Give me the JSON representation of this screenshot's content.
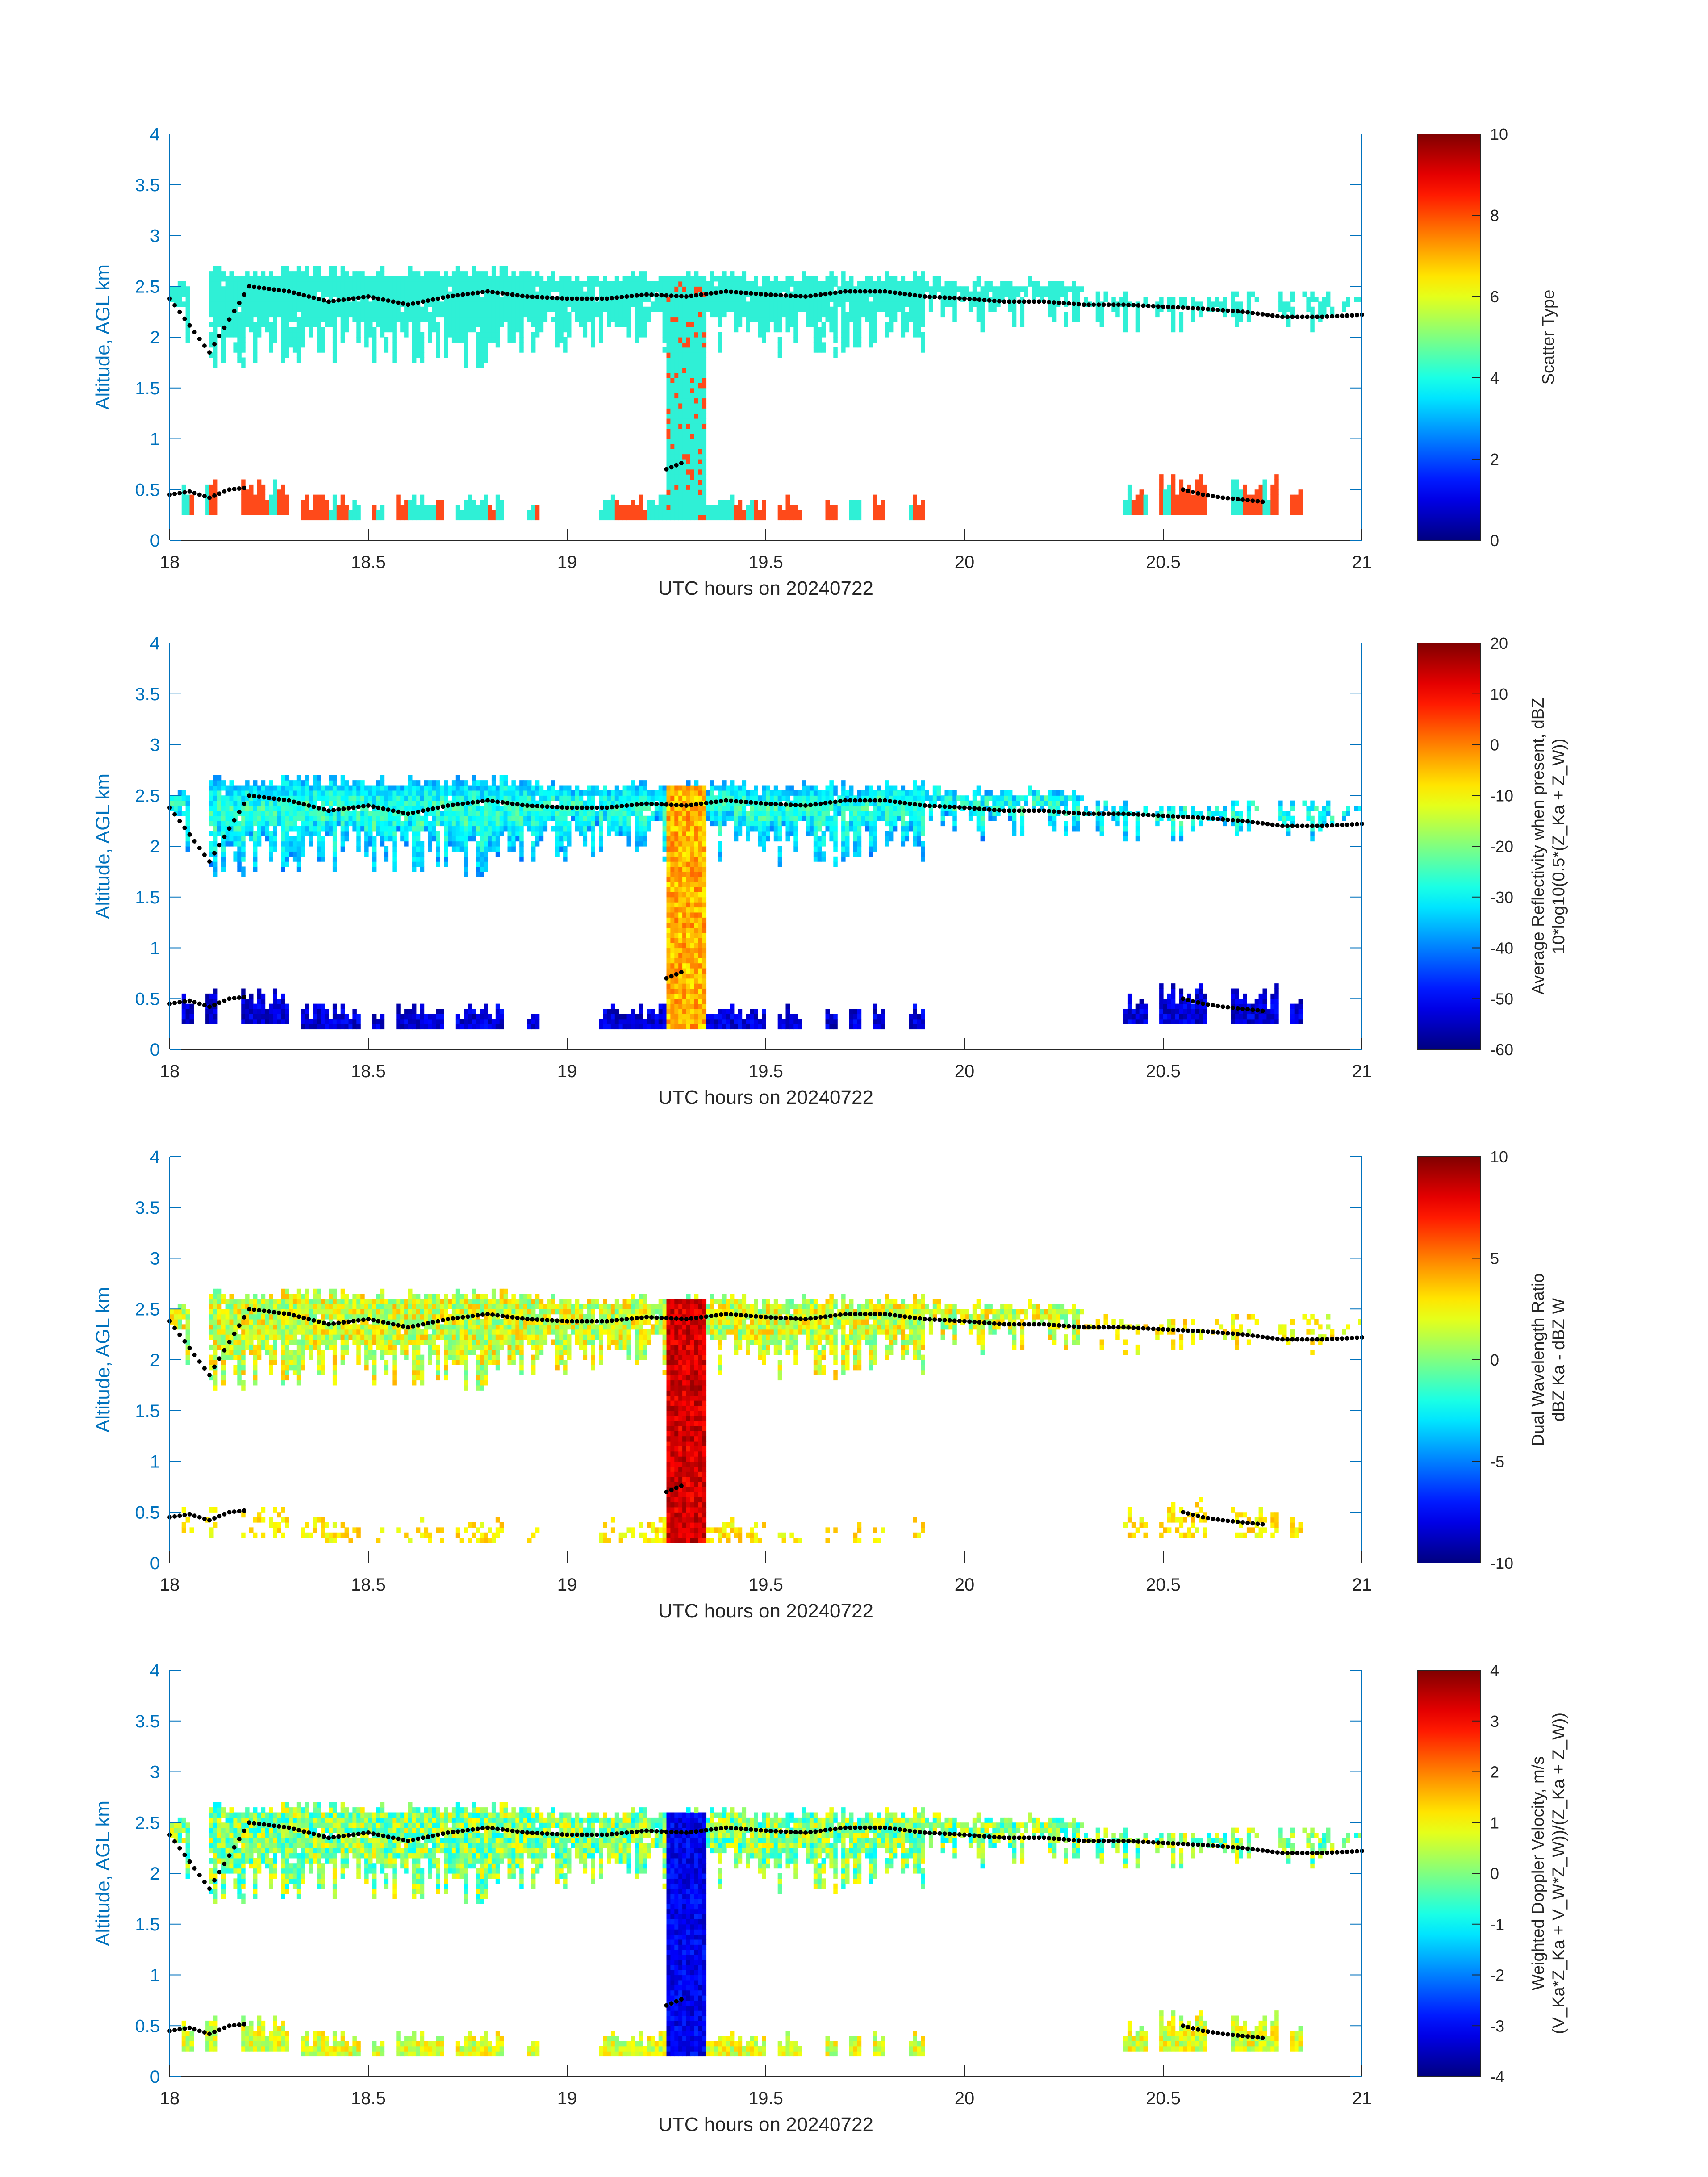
{
  "chart_data": [
    {
      "type": "heatmap",
      "xlabel": "UTC hours on 20240722",
      "ylabel": "Altitude, AGL km",
      "xlim": [
        18,
        21
      ],
      "ylim": [
        0,
        4
      ],
      "x_ticks": [
        "18",
        "18.5",
        "19",
        "19.5",
        "20",
        "20.5",
        "21"
      ],
      "y_ticks": [
        "0",
        "0.5",
        "1",
        "1.5",
        "2",
        "2.5",
        "3",
        "3.5",
        "4"
      ],
      "colorbar": {
        "label_lines": [
          "Scatter Type"
        ],
        "range": [
          0,
          10
        ],
        "ticks": [
          "0",
          "2",
          "4",
          "6",
          "8",
          "10"
        ]
      },
      "field": "scatter"
    },
    {
      "type": "heatmap",
      "xlabel": "UTC hours on 20240722",
      "ylabel": "Altitude, AGL km",
      "xlim": [
        18,
        21
      ],
      "ylim": [
        0,
        4
      ],
      "x_ticks": [
        "18",
        "18.5",
        "19",
        "19.5",
        "20",
        "20.5",
        "21"
      ],
      "y_ticks": [
        "0",
        "0.5",
        "1",
        "1.5",
        "2",
        "2.5",
        "3",
        "3.5",
        "4"
      ],
      "colorbar": {
        "label_lines": [
          "Average Reflectivity when present, dBZ",
          "10*log10(0.5*(Z_Ka + Z_W))"
        ],
        "range": [
          -60,
          20
        ],
        "ticks": [
          "-60",
          "-50",
          "-40",
          "-30",
          "-20",
          "-10",
          "0",
          "10",
          "20"
        ]
      },
      "field": "refl"
    },
    {
      "type": "heatmap",
      "xlabel": "UTC hours on 20240722",
      "ylabel": "Altitude, AGL km",
      "xlim": [
        18,
        21
      ],
      "ylim": [
        0,
        4
      ],
      "x_ticks": [
        "18",
        "18.5",
        "19",
        "19.5",
        "20",
        "20.5",
        "21"
      ],
      "y_ticks": [
        "0",
        "0.5",
        "1",
        "1.5",
        "2",
        "2.5",
        "3",
        "3.5",
        "4"
      ],
      "colorbar": {
        "label_lines": [
          "Dual Wavelength Ratio",
          "dBZ Ka - dBZ W"
        ],
        "range": [
          -10,
          10
        ],
        "ticks": [
          "-10",
          "-5",
          "0",
          "5",
          "10"
        ]
      },
      "field": "dwr"
    },
    {
      "type": "heatmap",
      "xlabel": "UTC hours on 20240722",
      "ylabel": "Altitude, AGL km",
      "xlim": [
        18,
        21
      ],
      "ylim": [
        0,
        4
      ],
      "x_ticks": [
        "18",
        "18.5",
        "19",
        "19.5",
        "20",
        "20.5",
        "21"
      ],
      "y_ticks": [
        "0",
        "0.5",
        "1",
        "1.5",
        "2",
        "2.5",
        "3",
        "3.5",
        "4"
      ],
      "colorbar": {
        "label_lines": [
          "Weighted Doppler Velocity, m/s",
          "(V_Ka*Z_Ka + V_W*Z_W))/(Z_Ka + Z_W))"
        ],
        "range": [
          -4,
          4
        ],
        "ticks": [
          "-4",
          "-3",
          "-2",
          "-1",
          "0",
          "1",
          "2",
          "3",
          "4"
        ]
      },
      "field": "vel"
    }
  ],
  "cloud_layers": [
    {
      "x_start": 18.0,
      "x_end": 18.05,
      "bottom_km": 2.0,
      "top_km": 2.6
    },
    {
      "x_start": 18.1,
      "x_end": 18.9,
      "bottom_km": 1.8,
      "top_km": 2.7
    },
    {
      "x_start": 18.9,
      "x_end": 19.9,
      "bottom_km": 1.9,
      "top_km": 2.65
    },
    {
      "x_start": 19.9,
      "x_end": 20.3,
      "bottom_km": 2.1,
      "top_km": 2.6
    },
    {
      "x_start": 20.3,
      "x_end": 21.0,
      "bottom_km": 2.15,
      "top_km": 2.45
    }
  ],
  "precip_shaft": {
    "x_start": 19.25,
    "x_end": 19.35,
    "bottom_km": 0.2,
    "top_km": 2.6
  },
  "low_layers": [
    {
      "x_start": 18.0,
      "x_end": 18.3,
      "bottom_km": 0.25,
      "top_km": 0.65
    },
    {
      "x_start": 18.3,
      "x_end": 19.9,
      "bottom_km": 0.2,
      "top_km": 0.45
    },
    {
      "x_start": 20.4,
      "x_end": 20.85,
      "bottom_km": 0.25,
      "top_km": 0.65
    }
  ],
  "cloud_base_dots": {
    "x": [
      18.0,
      18.1,
      18.2,
      18.3,
      18.4,
      18.5,
      18.6,
      18.7,
      18.8,
      18.9,
      19.0,
      19.1,
      19.2,
      19.3,
      19.4,
      19.5,
      19.6,
      19.7,
      19.8,
      19.9,
      20.0,
      20.1,
      20.2,
      20.3,
      20.4,
      20.5,
      20.6,
      20.7,
      20.8,
      20.9,
      21.0
    ],
    "altitude_km": [
      2.38,
      1.85,
      2.5,
      2.45,
      2.35,
      2.4,
      2.32,
      2.4,
      2.45,
      2.4,
      2.38,
      2.38,
      2.42,
      2.4,
      2.45,
      2.42,
      2.4,
      2.45,
      2.45,
      2.4,
      2.38,
      2.35,
      2.35,
      2.32,
      2.32,
      2.3,
      2.28,
      2.25,
      2.2,
      2.2,
      2.22
    ]
  },
  "low_base_dots": {
    "x": [
      18.0,
      18.05,
      18.1,
      18.15,
      18.2,
      19.25,
      19.3,
      20.55,
      20.6,
      20.65,
      20.7,
      20.75
    ],
    "altitude_km": [
      0.45,
      0.48,
      0.42,
      0.5,
      0.52,
      0.7,
      0.78,
      0.5,
      0.45,
      0.42,
      0.4,
      0.38
    ]
  },
  "colors": {
    "axis": "#0072BD",
    "text": "#262626",
    "marker": "#000000"
  }
}
